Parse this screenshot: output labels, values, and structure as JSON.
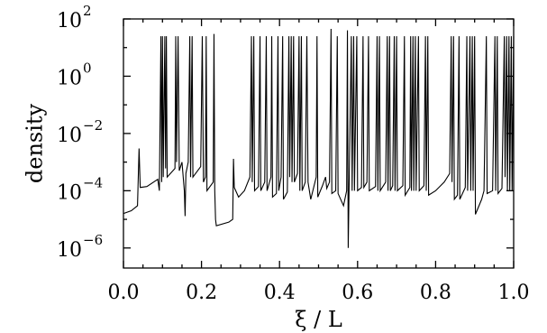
{
  "chart_data": {
    "type": "line",
    "title": "",
    "xlabel": "ξ / L",
    "ylabel": "density",
    "xlim": [
      0.0,
      1.0
    ],
    "ylim_log10": [
      -6.7,
      2.0
    ],
    "yscale": "log",
    "grid": false,
    "legend": "none",
    "x_ticks": [
      {
        "value": 0.0,
        "label": "0.0"
      },
      {
        "value": 0.2,
        "label": "0.2"
      },
      {
        "value": 0.4,
        "label": "0.4"
      },
      {
        "value": 0.6,
        "label": "0.6"
      },
      {
        "value": 0.8,
        "label": "0.8"
      },
      {
        "value": 1.0,
        "label": "1.0"
      }
    ],
    "y_ticks": [
      {
        "value": 100,
        "base": "10",
        "exp": "2"
      },
      {
        "value": 1,
        "base": "10",
        "exp": "0"
      },
      {
        "value": 0.01,
        "base": "10",
        "exp": "−2"
      },
      {
        "value": 0.0001,
        "base": "10",
        "exp": "−4"
      },
      {
        "value": 1e-06,
        "base": "10",
        "exp": "−6"
      }
    ],
    "series": [
      {
        "color": "#000000",
        "points": [
          [
            0.0,
            1.6e-05
          ],
          [
            0.02,
            2e-05
          ],
          [
            0.036,
            3e-05
          ],
          [
            0.04,
            0.003
          ],
          [
            0.043,
            0.00013
          ],
          [
            0.06,
            0.00014
          ],
          [
            0.088,
            0.00025
          ],
          [
            0.092,
            0.0001
          ],
          [
            0.096,
            25
          ],
          [
            0.098,
            0.0002
          ],
          [
            0.1,
            25
          ],
          [
            0.102,
            0.0003
          ],
          [
            0.106,
            25
          ],
          [
            0.108,
            0.0006
          ],
          [
            0.11,
            25
          ],
          [
            0.112,
            0.0003
          ],
          [
            0.132,
            0.0006
          ],
          [
            0.134,
            25
          ],
          [
            0.136,
            0.001
          ],
          [
            0.14,
            25
          ],
          [
            0.143,
            0.0005
          ],
          [
            0.15,
            0.001
          ],
          [
            0.156,
            0.0001
          ],
          [
            0.158,
            1.3e-05
          ],
          [
            0.16,
            0.0004
          ],
          [
            0.166,
            0.001
          ],
          [
            0.17,
            25
          ],
          [
            0.172,
            0.0003
          ],
          [
            0.176,
            25
          ],
          [
            0.178,
            0.0003
          ],
          [
            0.198,
            0.0007
          ],
          [
            0.202,
            25
          ],
          [
            0.205,
            0.0002
          ],
          [
            0.21,
            0.0003
          ],
          [
            0.212,
            25
          ],
          [
            0.214,
            0.0001
          ],
          [
            0.23,
            0.0002
          ],
          [
            0.232,
            30
          ],
          [
            0.234,
            0.0001
          ],
          [
            0.236,
            1e-05
          ],
          [
            0.238,
            6e-06
          ],
          [
            0.27,
            8e-06
          ],
          [
            0.28,
            1e-05
          ],
          [
            0.282,
            0.0013
          ],
          [
            0.284,
            0.00013
          ],
          [
            0.295,
            6e-05
          ],
          [
            0.31,
            0.0001
          ],
          [
            0.324,
            0.0003
          ],
          [
            0.328,
            25
          ],
          [
            0.33,
            0.0002
          ],
          [
            0.334,
            25
          ],
          [
            0.336,
            0.0001
          ],
          [
            0.346,
            0.00014
          ],
          [
            0.35,
            25
          ],
          [
            0.352,
            0.0001
          ],
          [
            0.362,
            0.0002
          ],
          [
            0.366,
            25
          ],
          [
            0.368,
            0.0001
          ],
          [
            0.378,
            0.0003
          ],
          [
            0.38,
            25
          ],
          [
            0.382,
            6e-05
          ],
          [
            0.392,
            8e-05
          ],
          [
            0.396,
            25
          ],
          [
            0.398,
            0.0001
          ],
          [
            0.404,
            0.0003
          ],
          [
            0.408,
            25
          ],
          [
            0.41,
            5e-05
          ],
          [
            0.42,
            9e-05
          ],
          [
            0.424,
            25
          ],
          [
            0.426,
            0.0003
          ],
          [
            0.43,
            25
          ],
          [
            0.432,
            0.0002
          ],
          [
            0.436,
            25
          ],
          [
            0.438,
            0.0002
          ],
          [
            0.446,
            0.0004
          ],
          [
            0.45,
            25
          ],
          [
            0.452,
            0.0001
          ],
          [
            0.456,
            25
          ],
          [
            0.458,
            0.0001
          ],
          [
            0.466,
            0.0002
          ],
          [
            0.47,
            25
          ],
          [
            0.473,
            0.0002
          ],
          [
            0.48,
            5e-05
          ],
          [
            0.494,
            0.0003
          ],
          [
            0.496,
            25
          ],
          [
            0.498,
            6e-05
          ],
          [
            0.51,
            0.00015
          ],
          [
            0.518,
            0.0003
          ],
          [
            0.521,
            0.00012
          ],
          [
            0.528,
            0.0002
          ],
          [
            0.532,
            45
          ],
          [
            0.534,
            8e-05
          ],
          [
            0.544,
            0.0001
          ],
          [
            0.548,
            25
          ],
          [
            0.55,
            8e-05
          ],
          [
            0.564,
            3e-05
          ],
          [
            0.572,
            0.0001
          ],
          [
            0.574,
            40
          ],
          [
            0.576,
            1e-06
          ],
          [
            0.578,
            7e-05
          ],
          [
            0.584,
            25
          ],
          [
            0.586,
            0.0001
          ],
          [
            0.59,
            25
          ],
          [
            0.592,
            0.0001
          ],
          [
            0.598,
            25
          ],
          [
            0.6,
            0.0001
          ],
          [
            0.61,
            0.00013
          ],
          [
            0.614,
            25
          ],
          [
            0.616,
            0.00013
          ],
          [
            0.624,
            0.0002
          ],
          [
            0.628,
            25
          ],
          [
            0.63,
            0.0001
          ],
          [
            0.646,
            0.00014
          ],
          [
            0.65,
            25
          ],
          [
            0.652,
            0.0001
          ],
          [
            0.656,
            25
          ],
          [
            0.658,
            0.0001
          ],
          [
            0.672,
            0.0002
          ],
          [
            0.676,
            25
          ],
          [
            0.678,
            0.0001
          ],
          [
            0.682,
            25
          ],
          [
            0.684,
            0.0001
          ],
          [
            0.69,
            0.00015
          ],
          [
            0.694,
            25
          ],
          [
            0.696,
            0.0001
          ],
          [
            0.7,
            25
          ],
          [
            0.702,
            0.0001
          ],
          [
            0.716,
            0.00015
          ],
          [
            0.72,
            25
          ],
          [
            0.722,
            7e-05
          ],
          [
            0.734,
            0.00013
          ],
          [
            0.736,
            25
          ],
          [
            0.738,
            0.0001
          ],
          [
            0.742,
            25
          ],
          [
            0.744,
            0.0001
          ],
          [
            0.748,
            25
          ],
          [
            0.75,
            0.0001
          ],
          [
            0.756,
            25
          ],
          [
            0.758,
            0.0001
          ],
          [
            0.77,
            0.00015
          ],
          [
            0.774,
            25
          ],
          [
            0.776,
            0.0001
          ],
          [
            0.78,
            25
          ],
          [
            0.782,
            7e-05
          ],
          [
            0.8,
            0.0001
          ],
          [
            0.822,
            0.0002
          ],
          [
            0.836,
            0.0004
          ],
          [
            0.84,
            25
          ],
          [
            0.842,
            0.0002
          ],
          [
            0.846,
            25
          ],
          [
            0.848,
            5e-05
          ],
          [
            0.856,
            7e-05
          ],
          [
            0.86,
            25
          ],
          [
            0.862,
            5e-05
          ],
          [
            0.876,
            0.00013
          ],
          [
            0.88,
            25
          ],
          [
            0.882,
            0.0001
          ],
          [
            0.888,
            25
          ],
          [
            0.89,
            0.0001
          ],
          [
            0.894,
            25
          ],
          [
            0.896,
            0.0001
          ],
          [
            0.9,
            25
          ],
          [
            0.902,
            1.5e-05
          ],
          [
            0.918,
            5e-05
          ],
          [
            0.924,
            0.0001
          ],
          [
            0.93,
            25
          ],
          [
            0.932,
            8e-05
          ],
          [
            0.946,
            0.0001
          ],
          [
            0.952,
            25
          ],
          [
            0.954,
            0.0001
          ],
          [
            0.958,
            25
          ],
          [
            0.96,
            8e-05
          ],
          [
            0.97,
            0.00012
          ],
          [
            0.976,
            25
          ],
          [
            0.978,
            0.0003
          ],
          [
            0.982,
            25
          ],
          [
            0.984,
            0.0001
          ],
          [
            0.988,
            25
          ],
          [
            0.99,
            0.0001
          ],
          [
            0.994,
            25
          ],
          [
            0.996,
            0.0001
          ],
          [
            1.0,
            25
          ]
        ]
      }
    ]
  }
}
